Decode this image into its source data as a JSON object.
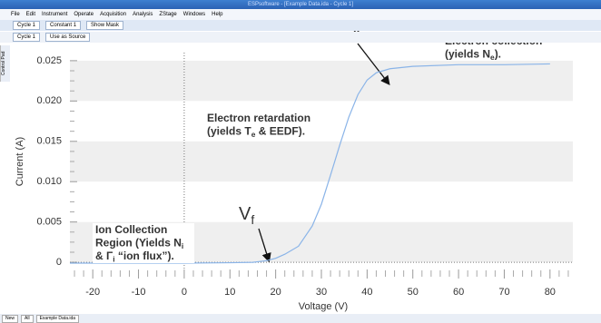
{
  "window": {
    "title": "ESPsoftware - [Example Data.ida - Cycle 1]"
  },
  "menu": [
    "File",
    "Edit",
    "Instrument",
    "Operate",
    "Acquisition",
    "Analysis",
    "ZStage",
    "Windows",
    "Help"
  ],
  "toolbar": {
    "row1": [
      "Cycle 1",
      "Constant 1",
      "Show Mask"
    ],
    "row2": [
      "Cycle 1",
      "Use as Source"
    ]
  },
  "side_panel": "Control Pad",
  "tabs": [
    "New",
    "All",
    "Example Data.ida"
  ],
  "chart_data": {
    "type": "line",
    "x_label": "Voltage (V)",
    "y_label": "Current (A)",
    "x": [
      -25,
      -20,
      -10,
      0,
      10,
      15,
      18,
      20,
      22,
      25,
      28,
      30,
      32,
      34,
      36,
      38,
      40,
      42,
      45,
      50,
      60,
      70,
      80
    ],
    "series": [
      {
        "name": "Current",
        "color": "#8ab4e8",
        "values": [
          -0.0001,
          -0.0001,
          -0.0001,
          -0.0001,
          -5e-05,
          0.0,
          0.0002,
          0.0005,
          0.001,
          0.002,
          0.0045,
          0.0072,
          0.0108,
          0.0145,
          0.018,
          0.0208,
          0.0226,
          0.0235,
          0.024,
          0.0243,
          0.0245,
          0.0245,
          0.0246
        ]
      }
    ],
    "xlim": [
      -25,
      85
    ],
    "ylim": [
      -0.001,
      0.026
    ],
    "xticks": [
      -20,
      -10,
      0,
      10,
      20,
      30,
      40,
      50,
      60,
      70,
      80
    ],
    "yticks": [
      0,
      0.005,
      {
        "value": 0.01,
        "label": "0.010"
      },
      0.015,
      {
        "value": 0.02,
        "label": "0.020"
      },
      0.025
    ],
    "banded_grid": true,
    "annotations": [
      {
        "lines": [
          [
            "V",
            {
              "sub": "p"
            }
          ]
        ],
        "size": "large"
      },
      {
        "lines": [
          [
            "V",
            {
              "sub": "f"
            }
          ]
        ],
        "size": "large"
      },
      {
        "lines": [
          [
            "Electron collection"
          ],
          [
            "(yields N",
            {
              "sub": "e"
            },
            ")."
          ]
        ]
      },
      {
        "lines": [
          [
            "Electron retardation"
          ],
          [
            "(yields T",
            {
              "sub": "e"
            },
            " & EEDF)."
          ]
        ]
      },
      {
        "lines": [
          [
            "Ion Collection"
          ],
          [
            "Region (Yields N",
            {
              "sub": "i"
            }
          ],
          [
            "& Γ",
            {
              "sub": "i"
            },
            " “ion flux”)."
          ]
        ]
      }
    ]
  }
}
